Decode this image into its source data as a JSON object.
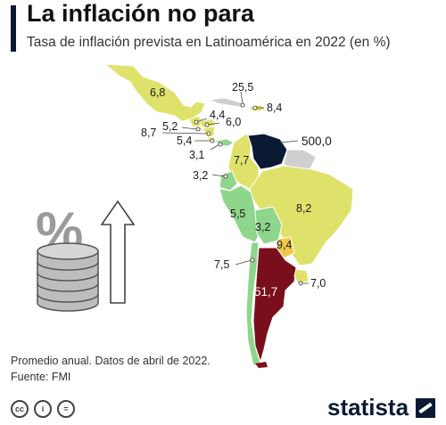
{
  "header": {
    "title": "La inflación no para",
    "subtitle": "Tasa de inflación prevista en Latinoamérica en 2022 (en %)"
  },
  "colors": {
    "accent": "#0b1a33",
    "low": "#8ed68c",
    "mid": "#dfe26a",
    "high": "#f1c84a",
    "very_high": "#7a0f1c",
    "extreme": "#0b1a33",
    "no_data": "#cfcfcf"
  },
  "regions": [
    {
      "id": "mexico",
      "value": "6,8"
    },
    {
      "id": "cuba",
      "value": "25,5"
    },
    {
      "id": "dominican-republic",
      "value": "8,4"
    },
    {
      "id": "guatemala",
      "value": "4,4"
    },
    {
      "id": "honduras",
      "value": "6,0"
    },
    {
      "id": "el-salvador",
      "value": "5,2"
    },
    {
      "id": "nicaragua",
      "value": "8,7"
    },
    {
      "id": "costa-rica",
      "value": "5,4"
    },
    {
      "id": "panama",
      "value": "3,1"
    },
    {
      "id": "venezuela",
      "value": "500,0"
    },
    {
      "id": "colombia",
      "value": "7,7"
    },
    {
      "id": "ecuador",
      "value": "3,2"
    },
    {
      "id": "peru",
      "value": "5,5"
    },
    {
      "id": "brazil",
      "value": "8,2"
    },
    {
      "id": "bolivia",
      "value": "3,2"
    },
    {
      "id": "paraguay",
      "value": "9,4"
    },
    {
      "id": "chile",
      "value": "7,5"
    },
    {
      "id": "argentina",
      "value": "51,7"
    },
    {
      "id": "uruguay",
      "value": "7,0"
    }
  ],
  "footer": {
    "note": "Promedio anual. Datos de abril de 2022.",
    "source": "Fuente: FMI",
    "license_icons": [
      "cc-icon",
      "person-icon",
      "equal-icon"
    ],
    "cc_text": "cc",
    "by_text": "i",
    "eq_text": "=",
    "brand": "statista"
  },
  "illustration": {
    "symbol": "%",
    "icons": [
      "percent-icon",
      "coin-stack-icon",
      "up-arrow-icon"
    ]
  }
}
